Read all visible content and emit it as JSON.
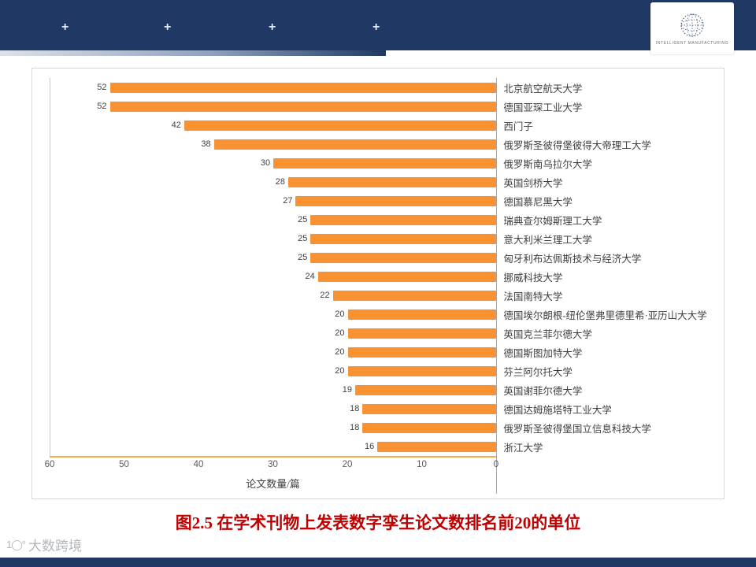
{
  "header": {
    "plus_marks": [
      "+",
      "+",
      "+",
      "+"
    ],
    "logo": {
      "icon": "dotted-globe-icon",
      "text": "INTELLIGENT MANUFACTURING"
    }
  },
  "chart_data": {
    "type": "bar",
    "orientation": "horizontal",
    "axis_direction": "reversed: 0 at right, bars grow leftward",
    "xlabel": "论文数量/篇",
    "xlim": [
      0,
      60
    ],
    "x_ticks": [
      60,
      50,
      40,
      30,
      20,
      10,
      0
    ],
    "grid": false,
    "legend": "none",
    "bar_color": "#F79333",
    "categories": [
      "北京航空航天大学",
      "德国亚琛工业大学",
      "西门子",
      "俄罗斯圣彼得堡彼得大帝理工大学",
      "俄罗斯南乌拉尔大学",
      "英国剑桥大学",
      "德国慕尼黑大学",
      "瑞典查尔姆斯理工大学",
      "意大利米兰理工大学",
      "匈牙利布达佩斯技术与经济大学",
      "挪威科技大学",
      "法国南特大学",
      "德国埃尔朗根-纽伦堡弗里德里希·亚历山大大学",
      "英国克兰菲尔德大学",
      "德国斯图加特大学",
      "芬兰阿尔托大学",
      "英国谢菲尔德大学",
      "德国达姆施塔特工业大学",
      "俄罗斯圣彼得堡国立信息科技大学",
      "浙江大学"
    ],
    "values": [
      52,
      52,
      42,
      38,
      30,
      28,
      27,
      25,
      25,
      25,
      24,
      22,
      20,
      20,
      20,
      20,
      19,
      18,
      18,
      16
    ]
  },
  "caption": "图2.5 在学术刊物上发表数字孪生论文数排名前20的单位",
  "watermark": {
    "icon": "ten-degree-logo-icon",
    "text": "大数跨境"
  },
  "colors": {
    "header_bg": "#1F3864",
    "footer_bg": "#1F3864",
    "caption_text": "#C00000",
    "bar": "#F79333",
    "axis_line": "#F9AC3F"
  }
}
